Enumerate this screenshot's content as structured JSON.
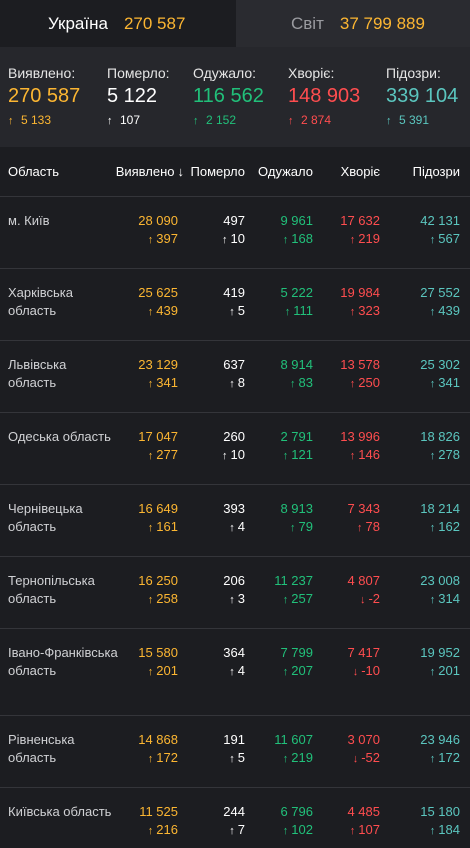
{
  "tabs": {
    "ukraine": {
      "label": "Україна",
      "value": "270 587"
    },
    "world": {
      "label": "Світ",
      "value": "37 799 889"
    }
  },
  "summary": [
    {
      "label": "Виявлено:",
      "value": "270 587",
      "delta": "5 133",
      "dir": "up",
      "color": "#fcb632"
    },
    {
      "label": "Померло:",
      "value": "5 122",
      "delta": "107",
      "dir": "up",
      "color": "#ffffff"
    },
    {
      "label": "Одужало:",
      "value": "116 562",
      "delta": "2 152",
      "dir": "up",
      "color": "#21c07a"
    },
    {
      "label": "Хворіє:",
      "value": "148 903",
      "delta": "2 874",
      "dir": "up",
      "color": "#ff4d4f"
    },
    {
      "label": "Підозри:",
      "value": "339 104",
      "delta": "5 391",
      "dir": "up",
      "color": "#5bc6bf"
    }
  ],
  "table": {
    "headers": {
      "region": "Область",
      "confirmed": "Виявлено",
      "sort_icon": "↓",
      "deaths": "Померло",
      "recovered": "Одужало",
      "sick": "Хворіє",
      "suspected": "Підозри"
    },
    "rows": [
      {
        "name": "м. Київ",
        "confirmed": "28 090",
        "confirmed_d": "397",
        "deaths": "497",
        "deaths_d": "10",
        "recovered": "9 961",
        "recovered_d": "168",
        "sick": "17 632",
        "sick_d": "219",
        "sick_dir": "up",
        "suspected": "42 131",
        "suspected_d": "567"
      },
      {
        "name": "Харківська область",
        "confirmed": "25 625",
        "confirmed_d": "439",
        "deaths": "419",
        "deaths_d": "5",
        "recovered": "5 222",
        "recovered_d": "111",
        "sick": "19 984",
        "sick_d": "323",
        "sick_dir": "up",
        "suspected": "27 552",
        "suspected_d": "439"
      },
      {
        "name": "Львівська область",
        "confirmed": "23 129",
        "confirmed_d": "341",
        "deaths": "637",
        "deaths_d": "8",
        "recovered": "8 914",
        "recovered_d": "83",
        "sick": "13 578",
        "sick_d": "250",
        "sick_dir": "up",
        "suspected": "25 302",
        "suspected_d": "341"
      },
      {
        "name": "Одеська область",
        "confirmed": "17 047",
        "confirmed_d": "277",
        "deaths": "260",
        "deaths_d": "10",
        "recovered": "2 791",
        "recovered_d": "121",
        "sick": "13 996",
        "sick_d": "146",
        "sick_dir": "up",
        "suspected": "18 826",
        "suspected_d": "278"
      },
      {
        "name": "Чернівецька область",
        "confirmed": "16 649",
        "confirmed_d": "161",
        "deaths": "393",
        "deaths_d": "4",
        "recovered": "8 913",
        "recovered_d": "79",
        "sick": "7 343",
        "sick_d": "78",
        "sick_dir": "up",
        "suspected": "18 214",
        "suspected_d": "162"
      },
      {
        "name": "Тернопільська область",
        "confirmed": "16 250",
        "confirmed_d": "258",
        "deaths": "206",
        "deaths_d": "3",
        "recovered": "11 237",
        "recovered_d": "257",
        "sick": "4 807",
        "sick_d": "-2",
        "sick_dir": "down",
        "suspected": "23 008",
        "suspected_d": "314"
      },
      {
        "name": "Івано-Франківська область",
        "confirmed": "15 580",
        "confirmed_d": "201",
        "deaths": "364",
        "deaths_d": "4",
        "recovered": "7 799",
        "recovered_d": "207",
        "sick": "7 417",
        "sick_d": "-10",
        "sick_dir": "down",
        "suspected": "19 952",
        "suspected_d": "201"
      },
      {
        "name": "Рівненська область",
        "confirmed": "14 868",
        "confirmed_d": "172",
        "deaths": "191",
        "deaths_d": "5",
        "recovered": "11 607",
        "recovered_d": "219",
        "sick": "3 070",
        "sick_d": "-52",
        "sick_dir": "down",
        "suspected": "23 946",
        "suspected_d": "172"
      },
      {
        "name": "Київська область",
        "confirmed": "11 525",
        "confirmed_d": "216",
        "deaths": "244",
        "deaths_d": "7",
        "recovered": "6 796",
        "recovered_d": "102",
        "sick": "4 485",
        "sick_d": "107",
        "sick_dir": "up",
        "suspected": "15 180",
        "suspected_d": "184"
      }
    ]
  },
  "colors": {
    "confirmed": "#fcb632",
    "deaths": "#ffffff",
    "recovered": "#21c07a",
    "sick": "#ff4d4f",
    "suspected": "#5bc6bf"
  },
  "icons": {
    "up": "arrow-up-icon",
    "down": "arrow-down-icon"
  }
}
